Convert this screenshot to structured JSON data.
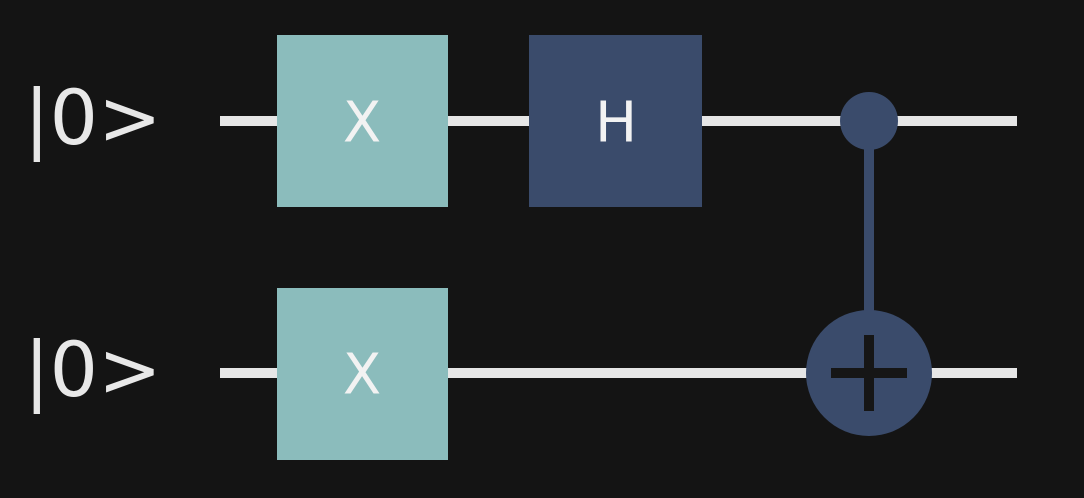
{
  "circuit": {
    "qubits": [
      {
        "label": "|0>"
      },
      {
        "label": "|0>"
      }
    ],
    "gates": [
      {
        "type": "X",
        "label": "X",
        "qubit": 0,
        "color": "#8bbcbc"
      },
      {
        "type": "H",
        "label": "H",
        "qubit": 0,
        "color": "#3a4b6b"
      },
      {
        "type": "X",
        "label": "X",
        "qubit": 1,
        "color": "#8bbcbc"
      },
      {
        "type": "CNOT",
        "control": 0,
        "target": 1,
        "color": "#3a4b6b"
      }
    ]
  },
  "colors": {
    "background": "#141414",
    "wire": "#e6e6e6",
    "text": "#e8e8e8",
    "x_gate": "#8bbcbc",
    "h_gate": "#3a4b6b",
    "cnot": "#3a4b6b",
    "cnot_plus": "#161616"
  }
}
